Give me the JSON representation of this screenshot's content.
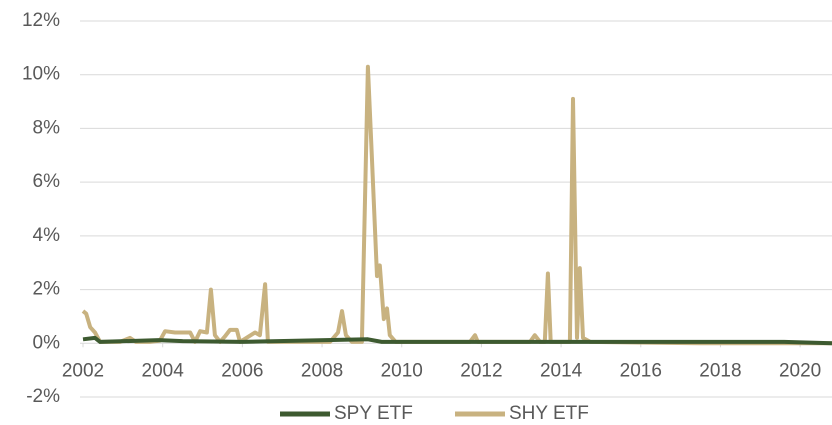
{
  "chart_data": {
    "type": "line",
    "xlim": [
      2002,
      2020.8
    ],
    "xticks": [
      2002,
      2004,
      2006,
      2008,
      2010,
      2012,
      2014,
      2016,
      2018,
      2020
    ],
    "ylim": [
      -2,
      12
    ],
    "yticks": [
      {
        "value": -2,
        "label": "-2%"
      },
      {
        "value": 0,
        "label": "0%"
      },
      {
        "value": 2,
        "label": "2%"
      },
      {
        "value": 4,
        "label": "4%"
      },
      {
        "value": 6,
        "label": "6%"
      },
      {
        "value": 8,
        "label": "8%"
      },
      {
        "value": 10,
        "label": "10%"
      },
      {
        "value": 12,
        "label": "12%"
      }
    ],
    "grid": true,
    "legend": "bottom",
    "series": [
      {
        "name": "SPY ETF",
        "color": "#3d5a30",
        "x": [
          2002.0,
          2002.3,
          2002.43,
          2003.9,
          2004.5,
          2006.0,
          2009.15,
          2009.5,
          2014.3,
          2019.6,
          2020.8
        ],
        "values": [
          0.15,
          0.2,
          0.05,
          0.12,
          0.08,
          0.05,
          0.15,
          0.05,
          0.05,
          0.05,
          0.0
        ]
      },
      {
        "name": "SHY ETF",
        "color": "#c8b280",
        "x": [
          2002.0,
          2002.08,
          2002.18,
          2002.3,
          2002.43,
          2002.93,
          2003.18,
          2003.33,
          2003.68,
          2003.93,
          2004.06,
          2004.31,
          2004.69,
          2004.81,
          2004.94,
          2005.11,
          2005.21,
          2005.31,
          2005.44,
          2005.56,
          2005.69,
          2005.86,
          2005.94,
          2006.32,
          2006.44,
          2006.57,
          2006.64,
          2008.2,
          2008.4,
          2008.5,
          2008.6,
          2008.75,
          2009.0,
          2009.15,
          2009.25,
          2009.38,
          2009.45,
          2009.55,
          2009.63,
          2009.7,
          2009.85,
          2011.71,
          2011.84,
          2011.91,
          2013.22,
          2013.34,
          2013.47,
          2013.59,
          2013.67,
          2013.74,
          2014.22,
          2014.3,
          2014.4,
          2014.47,
          2014.55,
          2014.73,
          2017.49,
          2020.8
        ],
        "values": [
          1.2,
          1.1,
          0.6,
          0.4,
          0.05,
          0.05,
          0.2,
          0.05,
          0.05,
          0.1,
          0.45,
          0.4,
          0.4,
          0.05,
          0.45,
          0.4,
          2.0,
          0.3,
          0.05,
          0.25,
          0.5,
          0.5,
          0.05,
          0.4,
          0.3,
          2.2,
          0.05,
          0.05,
          0.4,
          1.2,
          0.3,
          0.05,
          0.05,
          10.3,
          7.0,
          2.5,
          2.9,
          0.9,
          1.3,
          0.3,
          0.05,
          0.05,
          0.3,
          0.05,
          0.05,
          0.3,
          0.05,
          0.05,
          2.6,
          0.05,
          0.05,
          9.1,
          0.2,
          2.8,
          0.2,
          0.05,
          0.0,
          0.0
        ]
      }
    ]
  }
}
